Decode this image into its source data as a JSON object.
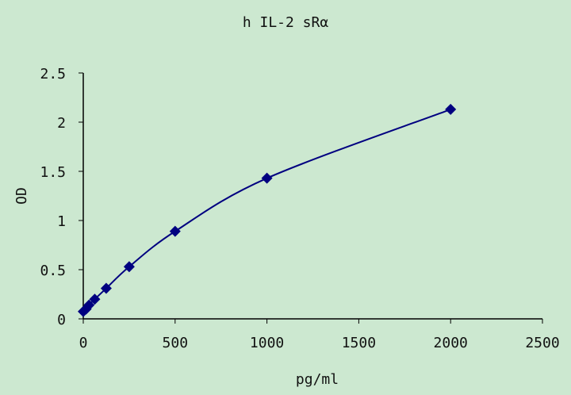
{
  "chart_data": {
    "type": "scatter",
    "title": "h IL-2 sRα",
    "xlabel": "pg/ml",
    "ylabel": "OD",
    "xlim": [
      0,
      2500
    ],
    "ylim": [
      0,
      2.5
    ],
    "xticks": [
      "0",
      "500",
      "1000",
      "1500",
      "2000",
      "2500"
    ],
    "yticks": [
      "0",
      "0.5",
      "1",
      "1.5",
      "2",
      "2.5"
    ],
    "grid": false,
    "marker_color": "#000080",
    "line_color": "#000080",
    "background": "#cce8d0",
    "x": [
      0,
      15.6,
      31.25,
      62.5,
      125,
      250,
      500,
      1000,
      2000
    ],
    "y": [
      0.075,
      0.1,
      0.14,
      0.2,
      0.31,
      0.53,
      0.89,
      1.43,
      2.13
    ]
  }
}
